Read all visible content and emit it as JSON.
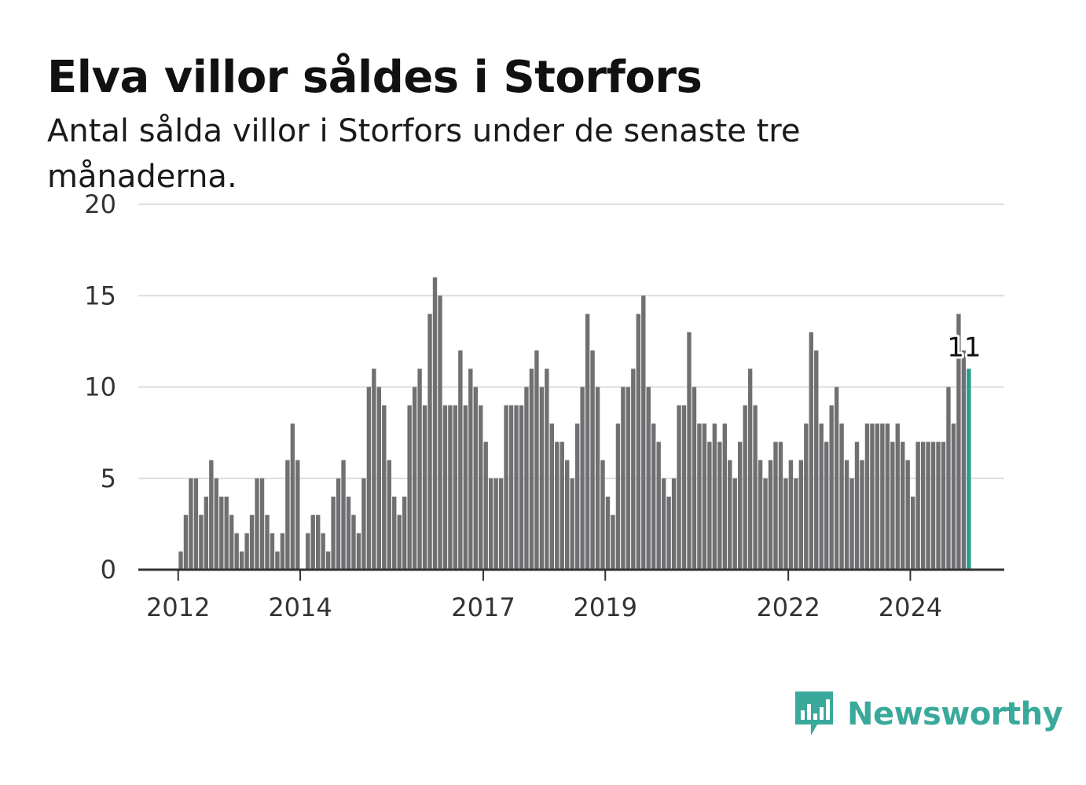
{
  "title": "Elva villor såldes i Storfors",
  "subtitle": "Antal sålda villor i Storfors under de senaste tre månaderna.",
  "logo": {
    "name": "Newsworthy",
    "icon": "newsworthy-chart-icon"
  },
  "colors": {
    "bar": "#707073",
    "highlight": "#2a9d8f",
    "grid": "#dddddd",
    "axis": "#333333",
    "logo": "#3aa99b"
  },
  "chart_data": {
    "type": "bar",
    "title": "Elva villor såldes i Storfors",
    "subtitle": "Antal sålda villor i Storfors under de senaste tre månaderna.",
    "xlabel": "",
    "ylabel": "",
    "ylim": [
      0,
      20
    ],
    "yticks": [
      0,
      5,
      10,
      15,
      20
    ],
    "xticks": [
      {
        "label": "2012",
        "month": "2012-01"
      },
      {
        "label": "2014",
        "month": "2014-01"
      },
      {
        "label": "2017",
        "month": "2017-01"
      },
      {
        "label": "2019",
        "month": "2019-01"
      },
      {
        "label": "2022",
        "month": "2022-01"
      },
      {
        "label": "2024",
        "month": "2024-01"
      }
    ],
    "grid": true,
    "x_start": "2011-03",
    "highlight_label": "11",
    "values": [
      0,
      0,
      0,
      0,
      0,
      0,
      0,
      0,
      0,
      0,
      1,
      3,
      5,
      5,
      3,
      4,
      6,
      5,
      4,
      4,
      3,
      2,
      1,
      2,
      3,
      5,
      5,
      3,
      2,
      1,
      2,
      6,
      8,
      6,
      0,
      2,
      3,
      3,
      2,
      1,
      4,
      5,
      6,
      4,
      3,
      2,
      5,
      10,
      11,
      10,
      9,
      6,
      4,
      3,
      4,
      9,
      10,
      11,
      9,
      14,
      16,
      15,
      9,
      9,
      9,
      12,
      9,
      11,
      10,
      9,
      7,
      5,
      5,
      5,
      9,
      9,
      9,
      9,
      10,
      11,
      12,
      10,
      11,
      8,
      7,
      7,
      6,
      5,
      8,
      10,
      14,
      12,
      10,
      6,
      4,
      3,
      8,
      10,
      10,
      11,
      14,
      15,
      10,
      8,
      7,
      5,
      4,
      5,
      9,
      9,
      13,
      10,
      8,
      8,
      7,
      8,
      7,
      8,
      6,
      5,
      7,
      9,
      11,
      9,
      6,
      5,
      6,
      7,
      7,
      5,
      6,
      5,
      6,
      8,
      13,
      12,
      8,
      7,
      9,
      10,
      8,
      6,
      5,
      7,
      6,
      8,
      8,
      8,
      8,
      8,
      7,
      8,
      7,
      6,
      4,
      7,
      7,
      7,
      7,
      7,
      7,
      10,
      8,
      14,
      12,
      11
    ]
  }
}
